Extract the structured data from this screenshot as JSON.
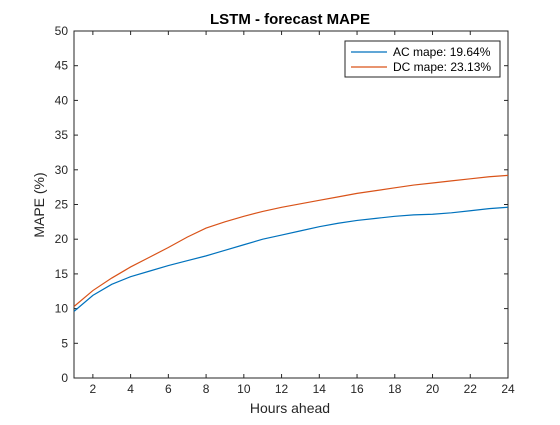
{
  "chart_data": {
    "type": "line",
    "title": "LSTM - forecast MAPE",
    "xlabel": "Hours ahead",
    "ylabel": "MAPE (%)",
    "xlim": [
      1,
      24
    ],
    "ylim": [
      0,
      50
    ],
    "xticks": [
      "2",
      "4",
      "6",
      "8",
      "10",
      "12",
      "14",
      "16",
      "18",
      "20",
      "22",
      "24"
    ],
    "yticks": [
      "0",
      "5",
      "10",
      "15",
      "20",
      "25",
      "30",
      "35",
      "40",
      "45",
      "50"
    ],
    "grid": false,
    "legend_position": "top-right",
    "x": [
      1,
      2,
      3,
      4,
      5,
      6,
      7,
      8,
      9,
      10,
      11,
      12,
      13,
      14,
      15,
      16,
      17,
      18,
      19,
      20,
      21,
      22,
      23,
      24
    ],
    "series": [
      {
        "name": "AC mape: 19.64%",
        "color": "#0072BD",
        "values": [
          9.6,
          11.9,
          13.5,
          14.6,
          15.4,
          16.2,
          16.9,
          17.6,
          18.4,
          19.2,
          20.0,
          20.6,
          21.2,
          21.8,
          22.3,
          22.7,
          23.0,
          23.3,
          23.5,
          23.6,
          23.8,
          24.1,
          24.4,
          24.6
        ]
      },
      {
        "name": "DC mape: 23.13%",
        "color": "#D95319",
        "values": [
          10.3,
          12.6,
          14.4,
          16.0,
          17.4,
          18.8,
          20.3,
          21.6,
          22.5,
          23.3,
          24.0,
          24.6,
          25.1,
          25.6,
          26.1,
          26.6,
          27.0,
          27.4,
          27.8,
          28.1,
          28.4,
          28.7,
          29.0,
          29.2
        ]
      }
    ]
  }
}
